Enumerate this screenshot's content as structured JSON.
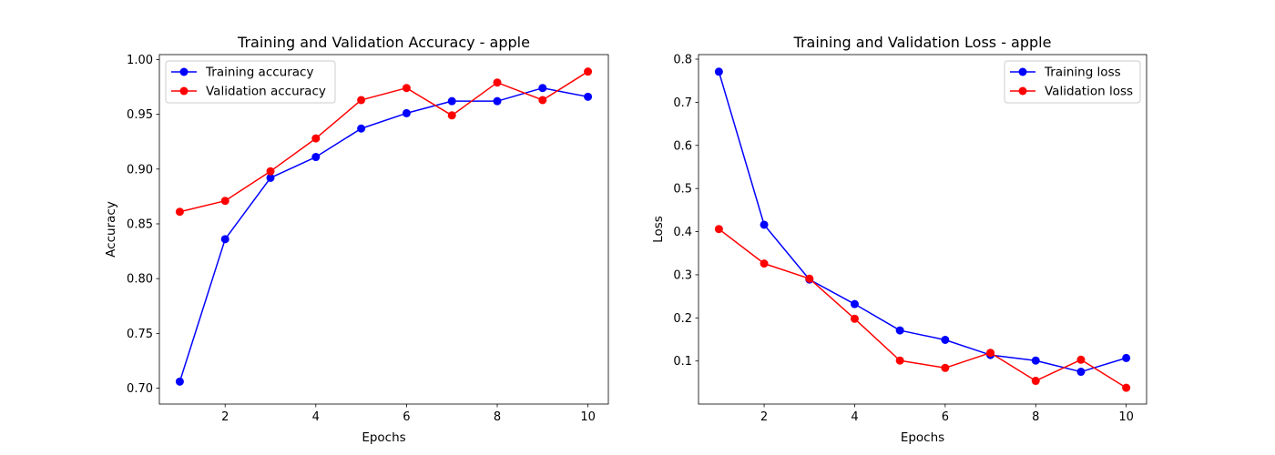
{
  "chart_data": [
    {
      "type": "line",
      "title": "Training and Validation Accuracy - apple",
      "xlabel": "Epochs",
      "ylabel": "Accuracy",
      "x": [
        1,
        2,
        3,
        4,
        5,
        6,
        7,
        8,
        9,
        10
      ],
      "xlim": [
        0.55,
        10.45
      ],
      "ylim": [
        0.6855,
        1.0045
      ],
      "xticks": [
        2,
        4,
        6,
        8,
        10
      ],
      "yticks": [
        0.7,
        0.75,
        0.8,
        0.85,
        0.9,
        0.95,
        1.0
      ],
      "ytick_format": 2,
      "legend_position": "upper left",
      "grid": false,
      "series": [
        {
          "name": "Training accuracy",
          "color": "#0000ff",
          "marker": "circle",
          "values": [
            0.706,
            0.836,
            0.892,
            0.911,
            0.937,
            0.951,
            0.962,
            0.962,
            0.974,
            0.966
          ]
        },
        {
          "name": "Validation accuracy",
          "color": "#ff0000",
          "marker": "circle",
          "values": [
            0.861,
            0.871,
            0.898,
            0.928,
            0.963,
            0.974,
            0.949,
            0.979,
            0.963,
            0.989
          ]
        }
      ]
    },
    {
      "type": "line",
      "title": "Training and Validation Loss - apple",
      "xlabel": "Epochs",
      "ylabel": "Loss",
      "x": [
        1,
        2,
        3,
        4,
        5,
        6,
        7,
        8,
        9,
        10
      ],
      "xlim": [
        0.55,
        10.45
      ],
      "ylim": [
        0.0002,
        0.8106
      ],
      "xticks": [
        2,
        4,
        6,
        8,
        10
      ],
      "yticks": [
        0.1,
        0.2,
        0.3,
        0.4,
        0.5,
        0.6,
        0.7,
        0.8
      ],
      "ytick_format": 1,
      "legend_position": "upper right",
      "grid": false,
      "series": [
        {
          "name": "Training loss",
          "color": "#0000ff",
          "marker": "circle",
          "values": [
            0.771,
            0.416,
            0.289,
            0.232,
            0.171,
            0.149,
            0.114,
            0.101,
            0.075,
            0.107
          ]
        },
        {
          "name": "Validation loss",
          "color": "#ff0000",
          "marker": "circle",
          "values": [
            0.406,
            0.326,
            0.291,
            0.198,
            0.101,
            0.084,
            0.119,
            0.054,
            0.103,
            0.038
          ]
        }
      ]
    }
  ]
}
